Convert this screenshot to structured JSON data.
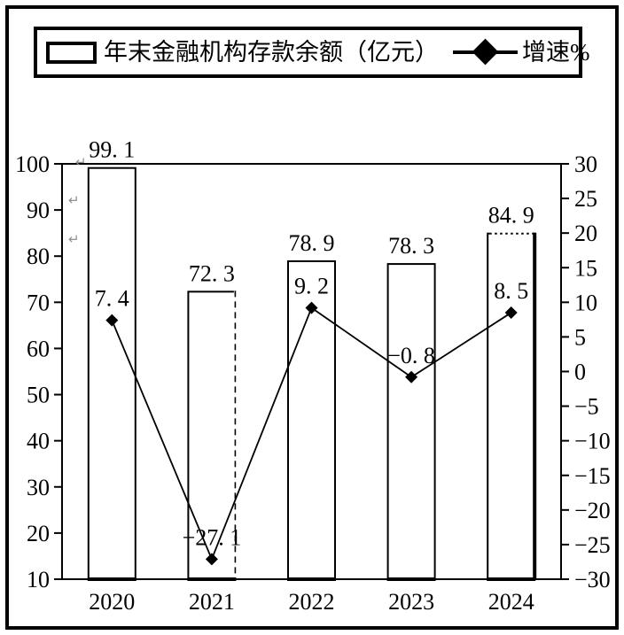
{
  "colors": {
    "ink": "#000000",
    "background": "#ffffff",
    "bar_fill": "#ffffff",
    "return_mark": "#909090"
  },
  "legend": {
    "bar_label": "年末金融机构存款余额（亿元）",
    "line_label": "增速%"
  },
  "artifacts": {
    "return_mark_glyph": "↵"
  },
  "chart_data": {
    "type": "bar+line combo",
    "title": "",
    "categories": [
      "2020",
      "2021",
      "2022",
      "2023",
      "2024"
    ],
    "series": [
      {
        "name": "年末金融机构存款余额（亿元）",
        "type": "bar",
        "axis": "left",
        "values": [
          99.1,
          72.3,
          78.9,
          78.3,
          84.9
        ],
        "fill": "#ffffff",
        "stroke": "#000000"
      },
      {
        "name": "增速%",
        "type": "line",
        "axis": "right",
        "values": [
          7.4,
          -27.1,
          9.2,
          -0.8,
          8.5
        ],
        "color": "#000000",
        "marker": "diamond"
      }
    ],
    "left_axis": {
      "min": 10,
      "max": 100,
      "step": 10,
      "ticks": [
        100,
        90,
        80,
        70,
        60,
        50,
        40,
        30,
        20,
        10
      ]
    },
    "right_axis": {
      "min": -30,
      "max": 30,
      "step": 5,
      "ticks": [
        30,
        25,
        20,
        15,
        10,
        5,
        0,
        -5,
        -10,
        -15,
        -20,
        -25,
        -30
      ]
    },
    "grid": false,
    "data_labels": true,
    "legend_position": "top"
  }
}
